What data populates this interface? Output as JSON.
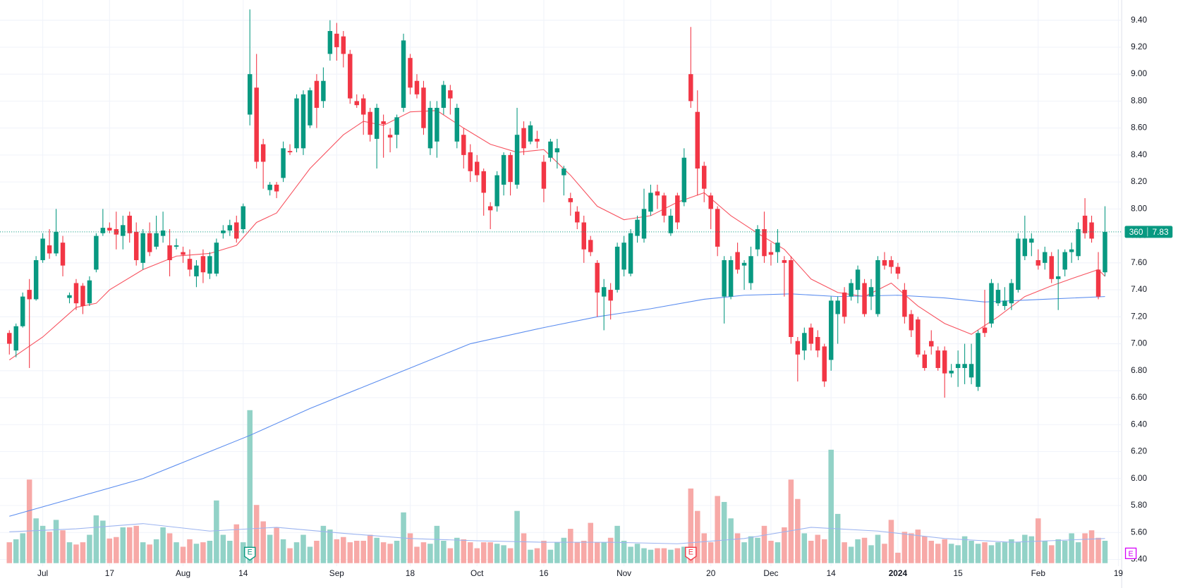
{
  "chart_data": {
    "type": "candlestick",
    "xlim": [
      -1.4,
      166.5
    ],
    "ylim": [
      5.35,
      9.55
    ],
    "volume_lim": [
      0,
      230
    ],
    "grid": true,
    "up_color": "#089981",
    "down_color": "#f23645",
    "up_volume_color": "#92d2c7",
    "down_volume_color": "#f7a9a7",
    "xticks": [
      {
        "value": 5,
        "label": "Jul"
      },
      {
        "value": 15,
        "label": "17"
      },
      {
        "value": 26,
        "label": "Aug"
      },
      {
        "value": 35,
        "label": "14"
      },
      {
        "value": 49,
        "label": "Sep"
      },
      {
        "value": 60,
        "label": "18"
      },
      {
        "value": 70,
        "label": "Oct"
      },
      {
        "value": 80,
        "label": "16"
      },
      {
        "value": 92,
        "label": "Nov"
      },
      {
        "value": 105,
        "label": "20"
      },
      {
        "value": 114,
        "label": "Dec"
      },
      {
        "value": 123,
        "label": "14"
      },
      {
        "value": 133,
        "label": "2024"
      },
      {
        "value": 142,
        "label": "15"
      },
      {
        "value": 154,
        "label": "Feb"
      },
      {
        "value": 166,
        "label": "19"
      }
    ],
    "yticks": [
      {
        "value": 5.4,
        "label": "5.40"
      },
      {
        "value": 5.6,
        "label": "5.60"
      },
      {
        "value": 5.8,
        "label": "5.80"
      },
      {
        "value": 6.0,
        "label": "6.00"
      },
      {
        "value": 6.2,
        "label": "6.20"
      },
      {
        "value": 6.4,
        "label": "6.40"
      },
      {
        "value": 6.6,
        "label": "6.60"
      },
      {
        "value": 6.8,
        "label": "6.80"
      },
      {
        "value": 7.0,
        "label": "7.00"
      },
      {
        "value": 7.2,
        "label": "7.20"
      },
      {
        "value": 7.4,
        "label": "7.40"
      },
      {
        "value": 7.6,
        "label": "7.60"
      },
      {
        "value": 7.8,
        "label": "7.80"
      },
      {
        "value": 8.0,
        "label": "8.00"
      },
      {
        "value": 8.2,
        "label": "8.20"
      },
      {
        "value": 8.4,
        "label": "8.40"
      },
      {
        "value": 8.6,
        "label": "8.60"
      },
      {
        "value": 8.8,
        "label": "8.80"
      },
      {
        "value": 9.0,
        "label": "9.00"
      },
      {
        "value": 9.2,
        "label": "9.20"
      },
      {
        "value": 9.4,
        "label": "9.40"
      }
    ],
    "open": [
      7.08,
      6.95,
      7.13,
      7.4,
      7.33,
      7.62,
      7.73,
      7.67,
      7.75,
      7.34,
      7.45,
      7.43,
      7.3,
      7.55,
      7.82,
      7.86,
      7.85,
      7.8,
      7.95,
      7.83,
      7.6,
      7.82,
      7.72,
      7.8,
      7.73,
      7.72,
      7.68,
      7.63,
      7.5,
      7.65,
      7.52,
      7.52,
      7.82,
      7.84,
      7.9,
      7.85,
      8.7,
      8.9,
      8.48,
      8.14,
      8.18,
      8.23,
      8.43,
      8.45,
      8.45,
      8.62,
      8.95,
      8.8,
      9.15,
      9.3,
      9.28,
      9.15,
      8.8,
      8.82,
      8.72,
      8.52,
      8.65,
      8.55,
      8.55,
      8.75,
      9.12,
      8.95,
      8.9,
      8.45,
      8.5,
      8.75,
      8.88,
      8.5,
      8.55,
      8.42,
      8.35,
      8.28,
      8.02,
      8.02,
      8.18,
      8.4,
      8.18,
      8.6,
      8.5,
      8.52,
      8.35,
      8.38,
      8.42,
      8.25,
      8.08,
      7.98,
      7.9,
      7.77,
      7.6,
      7.35,
      7.4,
      7.4,
      7.55,
      7.52,
      7.8,
      7.78,
      7.98,
      8.13,
      8.1,
      7.82,
      8.1,
      8.05,
      9.0,
      8.72,
      8.32,
      8.1,
      8.0,
      7.35,
      7.35,
      7.68,
      7.58,
      7.45,
      7.7,
      7.85,
      7.68,
      7.68,
      7.62,
      7.62,
      7.02,
      6.95,
      7.12,
      7.05,
      6.98,
      6.88,
      7.22,
      7.38,
      7.35,
      7.4,
      7.45,
      7.35,
      7.22,
      7.62,
      7.62,
      7.57,
      7.4,
      7.22,
      7.18,
      6.92,
      7.02,
      6.95,
      6.95,
      6.78,
      6.82,
      6.82,
      6.75,
      6.68,
      7.12,
      7.15,
      7.3,
      7.28,
      7.3,
      7.4,
      7.65,
      7.75,
      7.62,
      7.6,
      7.65,
      7.48,
      7.55,
      7.68,
      7.65,
      7.95,
      7.9,
      7.55,
      7.53
    ],
    "high": [
      7.1,
      7.15,
      7.38,
      7.48,
      7.65,
      7.82,
      7.85,
      8.0,
      7.8,
      7.38,
      7.48,
      7.45,
      7.5,
      7.82,
      8.0,
      7.9,
      7.98,
      7.95,
      7.98,
      7.9,
      7.85,
      7.9,
      7.95,
      7.98,
      7.85,
      7.78,
      7.72,
      7.7,
      7.62,
      7.7,
      7.68,
      7.78,
      7.88,
      7.92,
      7.95,
      8.04,
      9.48,
      9.15,
      8.52,
      8.2,
      8.2,
      8.5,
      8.48,
      8.85,
      8.88,
      8.9,
      9.0,
      9.05,
      9.4,
      9.38,
      9.32,
      9.18,
      8.85,
      8.85,
      8.75,
      8.78,
      8.7,
      8.6,
      8.7,
      9.3,
      9.15,
      9.0,
      8.95,
      8.8,
      8.8,
      8.95,
      8.92,
      8.78,
      8.6,
      8.48,
      8.4,
      8.3,
      8.05,
      8.28,
      8.42,
      8.42,
      8.75,
      8.65,
      8.65,
      8.58,
      8.4,
      8.52,
      8.52,
      8.32,
      8.12,
      8.02,
      7.95,
      7.8,
      7.62,
      7.48,
      7.45,
      7.75,
      7.8,
      7.85,
      7.95,
      8.15,
      8.18,
      8.18,
      8.12,
      8.0,
      8.12,
      8.45,
      9.35,
      8.88,
      8.35,
      8.12,
      8.02,
      7.65,
      7.65,
      7.75,
      7.62,
      7.72,
      7.88,
      7.98,
      7.75,
      7.85,
      7.65,
      7.65,
      7.05,
      7.12,
      7.15,
      7.1,
      7.0,
      7.35,
      7.35,
      7.42,
      7.48,
      7.58,
      7.48,
      7.48,
      7.65,
      7.68,
      7.65,
      7.6,
      7.45,
      7.25,
      7.2,
      6.95,
      7.1,
      6.98,
      6.98,
      6.85,
      6.95,
      7.0,
      7.0,
      7.1,
      7.4,
      7.48,
      7.45,
      7.42,
      7.48,
      7.82,
      7.95,
      7.82,
      7.7,
      7.72,
      7.68,
      7.7,
      7.7,
      7.75,
      7.9,
      8.08,
      7.95,
      7.68,
      8.02
    ],
    "low": [
      6.92,
      6.9,
      7.12,
      6.82,
      7.32,
      7.6,
      7.63,
      7.65,
      7.5,
      7.3,
      7.25,
      7.22,
      7.28,
      7.53,
      7.8,
      7.82,
      7.7,
      7.7,
      7.75,
      7.58,
      7.55,
      7.65,
      7.7,
      7.75,
      7.5,
      7.7,
      7.6,
      7.5,
      7.42,
      7.45,
      7.48,
      7.5,
      7.78,
      7.8,
      7.75,
      7.82,
      8.62,
      8.3,
      8.15,
      8.1,
      8.08,
      8.2,
      8.4,
      8.42,
      8.4,
      8.6,
      8.6,
      8.75,
      9.1,
      9.1,
      9.05,
      8.78,
      8.75,
      8.55,
      8.5,
      8.3,
      8.38,
      8.42,
      8.45,
      8.72,
      8.85,
      8.82,
      8.55,
      8.4,
      8.38,
      8.7,
      8.7,
      8.45,
      8.3,
      8.2,
      8.2,
      7.95,
      7.85,
      7.98,
      8.1,
      8.1,
      8.15,
      8.4,
      8.48,
      8.45,
      8.05,
      8.35,
      8.3,
      8.1,
      7.95,
      7.85,
      7.6,
      7.65,
      7.2,
      7.1,
      7.18,
      7.38,
      7.5,
      7.5,
      7.75,
      7.75,
      7.95,
      8.0,
      7.9,
      7.8,
      7.85,
      8.02,
      8.75,
      8.1,
      8.05,
      7.85,
      7.65,
      7.15,
      7.33,
      7.52,
      7.4,
      7.4,
      7.65,
      7.6,
      7.58,
      7.6,
      7.35,
      7.0,
      6.72,
      6.88,
      6.95,
      6.9,
      6.68,
      6.8,
      7.0,
      7.15,
      7.32,
      7.3,
      7.2,
      7.25,
      7.2,
      7.55,
      7.52,
      7.48,
      7.15,
      7.05,
      6.9,
      6.8,
      6.92,
      6.8,
      6.6,
      6.75,
      6.68,
      6.7,
      6.7,
      6.65,
      7.05,
      7.12,
      7.28,
      7.25,
      7.25,
      7.38,
      7.62,
      7.65,
      7.55,
      7.55,
      7.45,
      7.25,
      7.5,
      7.6,
      7.62,
      7.78,
      7.75,
      7.33,
      7.5
    ],
    "close": [
      7.0,
      7.13,
      7.35,
      7.33,
      7.62,
      7.78,
      7.67,
      7.83,
      7.58,
      7.36,
      7.3,
      7.28,
      7.47,
      7.8,
      7.86,
      7.84,
      7.81,
      7.88,
      7.82,
      7.62,
      7.82,
      7.68,
      7.82,
      7.84,
      7.62,
      7.73,
      7.66,
      7.55,
      7.58,
      7.53,
      7.65,
      7.75,
      7.84,
      7.88,
      7.78,
      8.02,
      9.0,
      8.35,
      8.35,
      8.18,
      8.13,
      8.45,
      8.42,
      8.82,
      8.85,
      8.88,
      8.75,
      8.95,
      9.32,
      9.2,
      9.15,
      8.82,
      8.77,
      8.7,
      8.55,
      8.75,
      8.63,
      8.53,
      8.68,
      9.25,
      8.9,
      8.85,
      8.6,
      8.75,
      8.75,
      8.92,
      8.82,
      8.75,
      8.4,
      8.28,
      8.25,
      8.12,
      7.99,
      8.25,
      8.4,
      8.2,
      8.55,
      8.45,
      8.62,
      8.5,
      8.15,
      8.5,
      8.45,
      8.3,
      8.05,
      7.9,
      7.7,
      7.68,
      7.38,
      7.42,
      7.32,
      7.72,
      7.75,
      7.82,
      7.92,
      8.0,
      8.12,
      8.1,
      7.95,
      7.95,
      7.9,
      8.38,
      8.8,
      8.3,
      8.15,
      8.0,
      7.72,
      7.62,
      7.62,
      7.55,
      7.6,
      7.65,
      7.85,
      7.65,
      7.66,
      7.75,
      7.6,
      7.05,
      6.92,
      7.08,
      7.0,
      6.95,
      6.72,
      7.32,
      7.32,
      7.2,
      7.45,
      7.55,
      7.22,
      7.42,
      7.62,
      7.58,
      7.57,
      7.52,
      7.2,
      7.1,
      6.92,
      6.82,
      6.98,
      6.82,
      6.78,
      6.8,
      6.85,
      6.85,
      6.85,
      7.08,
      7.08,
      7.45,
      7.4,
      7.32,
      7.45,
      7.78,
      7.78,
      7.78,
      7.58,
      7.68,
      7.48,
      7.5,
      7.68,
      7.7,
      7.85,
      7.82,
      7.78,
      7.35,
      7.83
    ],
    "volume": [
      28,
      32,
      40,
      112,
      60,
      50,
      42,
      58,
      44,
      28,
      25,
      28,
      38,
      64,
      57,
      33,
      35,
      48,
      48,
      50,
      28,
      25,
      32,
      48,
      40,
      28,
      22,
      32,
      26,
      28,
      30,
      84,
      38,
      30,
      52,
      28,
      205,
      78,
      56,
      38,
      48,
      32,
      20,
      28,
      38,
      22,
      30,
      50,
      45,
      32,
      35,
      28,
      30,
      30,
      38,
      34,
      28,
      26,
      30,
      68,
      40,
      22,
      28,
      26,
      50,
      30,
      20,
      34,
      32,
      28,
      20,
      28,
      28,
      26,
      24,
      20,
      70,
      40,
      18,
      20,
      30,
      18,
      28,
      34,
      46,
      28,
      30,
      54,
      28,
      28,
      34,
      50,
      30,
      22,
      26,
      20,
      18,
      20,
      20,
      18,
      20,
      22,
      100,
      70,
      40,
      28,
      90,
      82,
      60,
      40,
      28,
      36,
      34,
      50,
      30,
      28,
      48,
      112,
      86,
      40,
      30,
      38,
      32,
      152,
      66,
      28,
      22,
      32,
      34,
      24,
      38,
      26,
      58,
      14,
      42,
      40,
      45,
      36,
      30,
      26,
      32,
      26,
      24,
      36,
      30,
      26,
      28,
      24,
      28,
      28,
      32,
      28,
      38,
      36,
      60,
      30,
      24,
      32,
      30,
      40,
      28,
      40,
      44,
      34,
      30
    ],
    "series": [
      {
        "color": "#f7525f",
        "x": [
          0,
          5,
          10,
          13,
          15,
          20,
          25,
          30,
          34,
          37,
          40,
          45,
          50,
          53,
          56,
          60,
          64,
          68,
          72,
          76,
          80,
          84,
          88,
          92,
          96,
          100,
          104,
          108,
          112,
          116,
          120,
          124,
          128,
          132,
          136,
          140,
          144,
          148,
          152,
          156,
          160,
          163,
          164
        ],
        "values": [
          6.88,
          7.05,
          7.27,
          7.3,
          7.4,
          7.55,
          7.65,
          7.67,
          7.73,
          7.9,
          7.97,
          8.3,
          8.55,
          8.65,
          8.62,
          8.72,
          8.73,
          8.6,
          8.48,
          8.42,
          8.44,
          8.25,
          8.02,
          7.92,
          7.95,
          8.05,
          8.12,
          7.95,
          7.82,
          7.7,
          7.48,
          7.38,
          7.35,
          7.45,
          7.28,
          7.15,
          7.07,
          7.2,
          7.35,
          7.43,
          7.5,
          7.55,
          7.5
        ]
      },
      {
        "color": "#5b8def",
        "x": [
          0,
          10,
          20,
          30,
          36,
          45,
          55,
          60,
          69,
          80,
          88,
          96,
          104,
          110,
          117,
          124,
          133,
          140,
          146,
          155,
          164
        ],
        "values": [
          5.72,
          5.86,
          6.0,
          6.2,
          6.32,
          6.52,
          6.72,
          6.82,
          7.0,
          7.12,
          7.2,
          7.26,
          7.33,
          7.36,
          7.37,
          7.35,
          7.36,
          7.34,
          7.31,
          7.33,
          7.35
        ]
      }
    ],
    "volume_ma": {
      "color": "#9cb4f0",
      "x": [
        0,
        10,
        20,
        30,
        40,
        50,
        60,
        70,
        80,
        90,
        100,
        110,
        120,
        130,
        140,
        150,
        164
      ],
      "values": [
        42,
        46,
        53,
        43,
        48,
        40,
        33,
        30,
        28,
        28,
        26,
        33,
        48,
        43,
        33,
        28,
        33
      ]
    },
    "last_price": {
      "value": 7.83,
      "label": "7.83"
    },
    "countdown": "360",
    "earnings": [
      {
        "x": 36,
        "label": "E"
      },
      {
        "x": 102,
        "label": "E"
      }
    ],
    "upcoming_earnings": "E"
  }
}
